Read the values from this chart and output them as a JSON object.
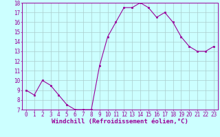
{
  "x": [
    0,
    1,
    2,
    3,
    4,
    5,
    6,
    7,
    8,
    9,
    10,
    11,
    12,
    13,
    14,
    15,
    16,
    17,
    18,
    19,
    20,
    21,
    22,
    23
  ],
  "y": [
    9.0,
    8.5,
    10.0,
    9.5,
    8.5,
    7.5,
    7.0,
    7.0,
    7.0,
    11.5,
    14.5,
    16.0,
    17.5,
    17.5,
    18.0,
    17.5,
    16.5,
    17.0,
    16.0,
    14.5,
    13.5,
    13.0,
    13.0,
    13.5
  ],
  "line_color": "#990099",
  "marker_color": "#990099",
  "bg_color": "#ccffff",
  "grid_color": "#aacccc",
  "xlabel": "Windchill (Refroidissement éolien,°C)",
  "xlabel_color": "#990099",
  "ylim": [
    7,
    18
  ],
  "yticks": [
    7,
    8,
    9,
    10,
    11,
    12,
    13,
    14,
    15,
    16,
    17,
    18
  ],
  "xticks": [
    0,
    1,
    2,
    3,
    4,
    5,
    6,
    7,
    8,
    9,
    10,
    11,
    12,
    13,
    14,
    15,
    16,
    17,
    18,
    19,
    20,
    21,
    22,
    23
  ],
  "tick_fontsize": 5.5,
  "xlabel_fontsize": 6.5
}
